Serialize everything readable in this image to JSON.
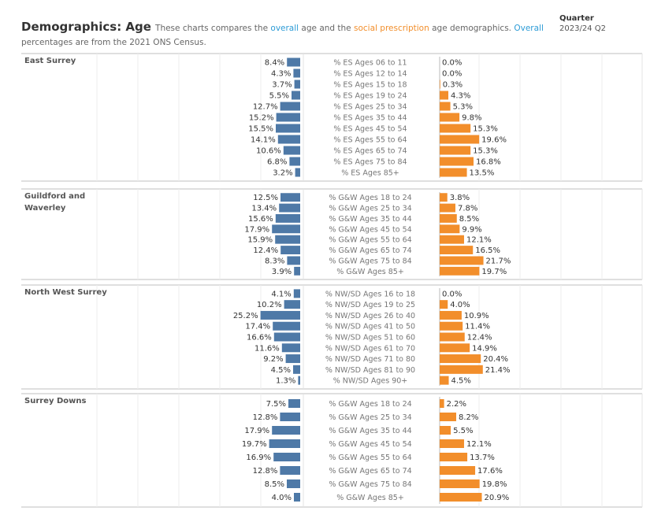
{
  "header": {
    "title": "Demographics: Age",
    "desc_1": "These charts compares the",
    "overall_word": "overall",
    "desc_2": "age and the",
    "social_word": "social prescription",
    "desc_3": "age demographics.",
    "overall_word_2": "Overall",
    "desc_4": "percentages are from the 2021 ONS Census."
  },
  "filter": {
    "label": "Quarter",
    "value": "2023/24 Q2"
  },
  "colors": {
    "overall_bar": "#4e79a7",
    "social_bar": "#f28e2b",
    "overall_text": "#2c9bd6",
    "social_text": "#f28e2b"
  },
  "chart_data": {
    "type": "bar",
    "orientation": "horizontal-butterfly",
    "series_names": [
      "overall",
      "social prescription"
    ],
    "panels": [
      {
        "region": "East Surrey",
        "categories": [
          "% ES Ages 06 to 11",
          "% ES Ages 12 to 14",
          "% ES Ages 15 to 18",
          "% ES Ages 19 to 24",
          "% ES Ages 25 to 34",
          "% ES Ages 35 to 44",
          "% ES Ages 45 to 54",
          "% ES Ages 55 to 64",
          "% ES Ages 65 to 74",
          "% ES Ages 75 to 84",
          "% ES Ages 85+"
        ],
        "overall": [
          8.4,
          4.3,
          3.7,
          5.5,
          12.7,
          15.2,
          15.5,
          14.1,
          10.6,
          6.8,
          3.2
        ],
        "social": [
          0.0,
          0.0,
          0.3,
          4.3,
          5.3,
          9.8,
          15.3,
          19.6,
          15.3,
          16.8,
          13.5
        ]
      },
      {
        "region": "Guildford and Waverley",
        "categories": [
          "% G&W Ages 18 to 24",
          "% G&W Ages 25 to 34",
          "% G&W Ages 35 to 44",
          "% G&W Ages 45 to 54",
          "% G&W Ages 55 to 64",
          "% G&W Ages 65 to 74",
          "% G&W Ages 75 to 84",
          "% G&W Ages 85+"
        ],
        "overall": [
          12.5,
          13.4,
          15.6,
          17.9,
          15.9,
          12.4,
          8.3,
          3.9
        ],
        "social": [
          3.8,
          7.8,
          8.5,
          9.9,
          12.1,
          16.5,
          21.7,
          19.7
        ]
      },
      {
        "region": "North West Surrey",
        "categories": [
          "% NW/SD Ages 16 to 18",
          "% NW/SD Ages 19 to 25",
          "% NW/SD Ages 26 to 40",
          "% NW/SD Ages 41 to 50",
          "% NW/SD Ages 51 to 60",
          "% NW/SD Ages 61 to 70",
          "% NW/SD Ages 71 to 80",
          "% NW/SD Ages 81 to 90",
          "% NW/SD Ages 90+"
        ],
        "overall": [
          4.1,
          10.2,
          25.2,
          17.4,
          16.6,
          11.6,
          9.2,
          4.5,
          1.3
        ],
        "social": [
          0.0,
          4.0,
          10.9,
          11.4,
          12.4,
          14.9,
          20.4,
          21.4,
          4.5
        ]
      },
      {
        "region": "Surrey Downs",
        "categories": [
          "% G&W Ages 18 to 24",
          "% G&W Ages 25 to 34",
          "% G&W Ages 35 to 44",
          "% G&W Ages 45 to 54",
          "% G&W Ages 55 to 64",
          "% G&W Ages 65 to 74",
          "% G&W Ages 75 to 84",
          "% G&W Ages 85+"
        ],
        "overall": [
          7.5,
          12.8,
          17.9,
          19.7,
          16.9,
          12.8,
          8.5,
          4.0
        ],
        "social": [
          2.2,
          8.2,
          5.5,
          12.1,
          13.7,
          17.6,
          19.8,
          20.9
        ]
      }
    ]
  }
}
